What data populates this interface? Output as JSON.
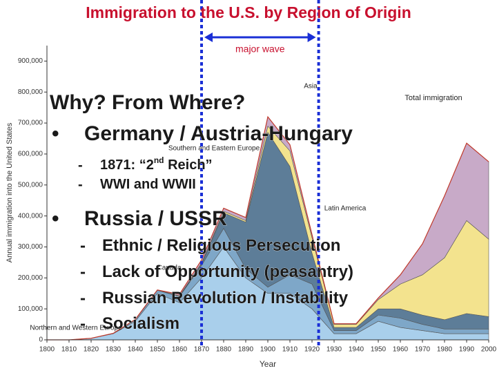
{
  "slide": {
    "title": "Immigration to the U.S. by Region of Origin",
    "heading": "Why? From Where?",
    "bullets": [
      {
        "text": "Germany / Austria-Hungary",
        "subs": [
          {
            "parts": [
              "1871: “2",
              "nd",
              " Reich”"
            ]
          },
          {
            "parts": [
              "WWI and WWII"
            ]
          }
        ]
      },
      {
        "text": "Russia / USSR",
        "subs": [
          {
            "parts": [
              "Ethnic / Religious Persecution"
            ]
          },
          {
            "parts": [
              "Lack of Opportunity (peasantry)"
            ]
          },
          {
            "parts": [
              "Russian Revolution / Instability"
            ]
          },
          {
            "parts": [
              "Socialism"
            ]
          }
        ]
      }
    ],
    "bullet_mark": "•",
    "sub_mark": "-"
  },
  "chart_data": {
    "type": "stacked-area",
    "xlabel": "Year",
    "ylabel": "Annual immigration into the United States",
    "x": [
      1800,
      1810,
      1820,
      1830,
      1840,
      1850,
      1860,
      1870,
      1880,
      1890,
      1900,
      1910,
      1920,
      1930,
      1940,
      1950,
      1960,
      1970,
      1980,
      1990,
      2000
    ],
    "xlim": [
      1800,
      2000
    ],
    "xticks": [
      1800,
      1810,
      1820,
      1830,
      1840,
      1850,
      1860,
      1870,
      1880,
      1890,
      1900,
      1910,
      1920,
      1930,
      1940,
      1950,
      1960,
      1970,
      1980,
      1990,
      2000
    ],
    "ylim": [
      0,
      950000
    ],
    "yticks": [
      0,
      {
        "value": 100000,
        "label": "100,000"
      },
      {
        "value": 200000,
        "label": "200,000"
      },
      {
        "value": 300000,
        "label": "300,000"
      },
      {
        "value": 400000,
        "label": "400,000"
      },
      {
        "value": 500000,
        "label": "500,000"
      },
      {
        "value": 600000,
        "label": "600,000"
      },
      {
        "value": 700000,
        "label": "700,000"
      },
      {
        "value": 800000,
        "label": "800,000"
      },
      {
        "value": 900000,
        "label": "900,000"
      }
    ],
    "series": [
      {
        "name": "Northern and Western Europe",
        "color": "#a9cfeb",
        "values": [
          0,
          0,
          5000,
          20000,
          60000,
          150000,
          120000,
          200000,
          300000,
          200000,
          150000,
          150000,
          100000,
          20000,
          20000,
          60000,
          40000,
          30000,
          20000,
          20000,
          20000
        ]
      },
      {
        "name": "Canada",
        "color": "#7ea7c8",
        "values": [
          0,
          0,
          0,
          1000,
          5000,
          10000,
          20000,
          40000,
          60000,
          30000,
          20000,
          60000,
          80000,
          10000,
          10000,
          20000,
          30000,
          20000,
          15000,
          15000,
          15000
        ]
      },
      {
        "name": "Southern and Eastern Europe",
        "color": "#5d7d98",
        "values": [
          0,
          0,
          0,
          0,
          0,
          0,
          0,
          5000,
          50000,
          150000,
          500000,
          350000,
          100000,
          10000,
          10000,
          20000,
          30000,
          30000,
          30000,
          50000,
          40000
        ]
      },
      {
        "name": "Latin America",
        "color": "#f3e38e",
        "values": [
          0,
          0,
          0,
          0,
          1000,
          1000,
          2000,
          3000,
          5000,
          5000,
          20000,
          50000,
          50000,
          10000,
          10000,
          30000,
          80000,
          130000,
          200000,
          300000,
          250000
        ]
      },
      {
        "name": "Asia",
        "color": "#c8aac8",
        "values": [
          0,
          0,
          0,
          0,
          0,
          0,
          5000,
          10000,
          10000,
          10000,
          30000,
          20000,
          10000,
          2000,
          2000,
          5000,
          30000,
          100000,
          200000,
          250000,
          250000
        ]
      }
    ],
    "annotations": [
      {
        "text": "Total immigration",
        "x": 1975,
        "y": 780000
      }
    ],
    "highlight": {
      "label": "major wave",
      "range": [
        1870,
        1923
      ],
      "color": "#1a2fd6"
    }
  }
}
